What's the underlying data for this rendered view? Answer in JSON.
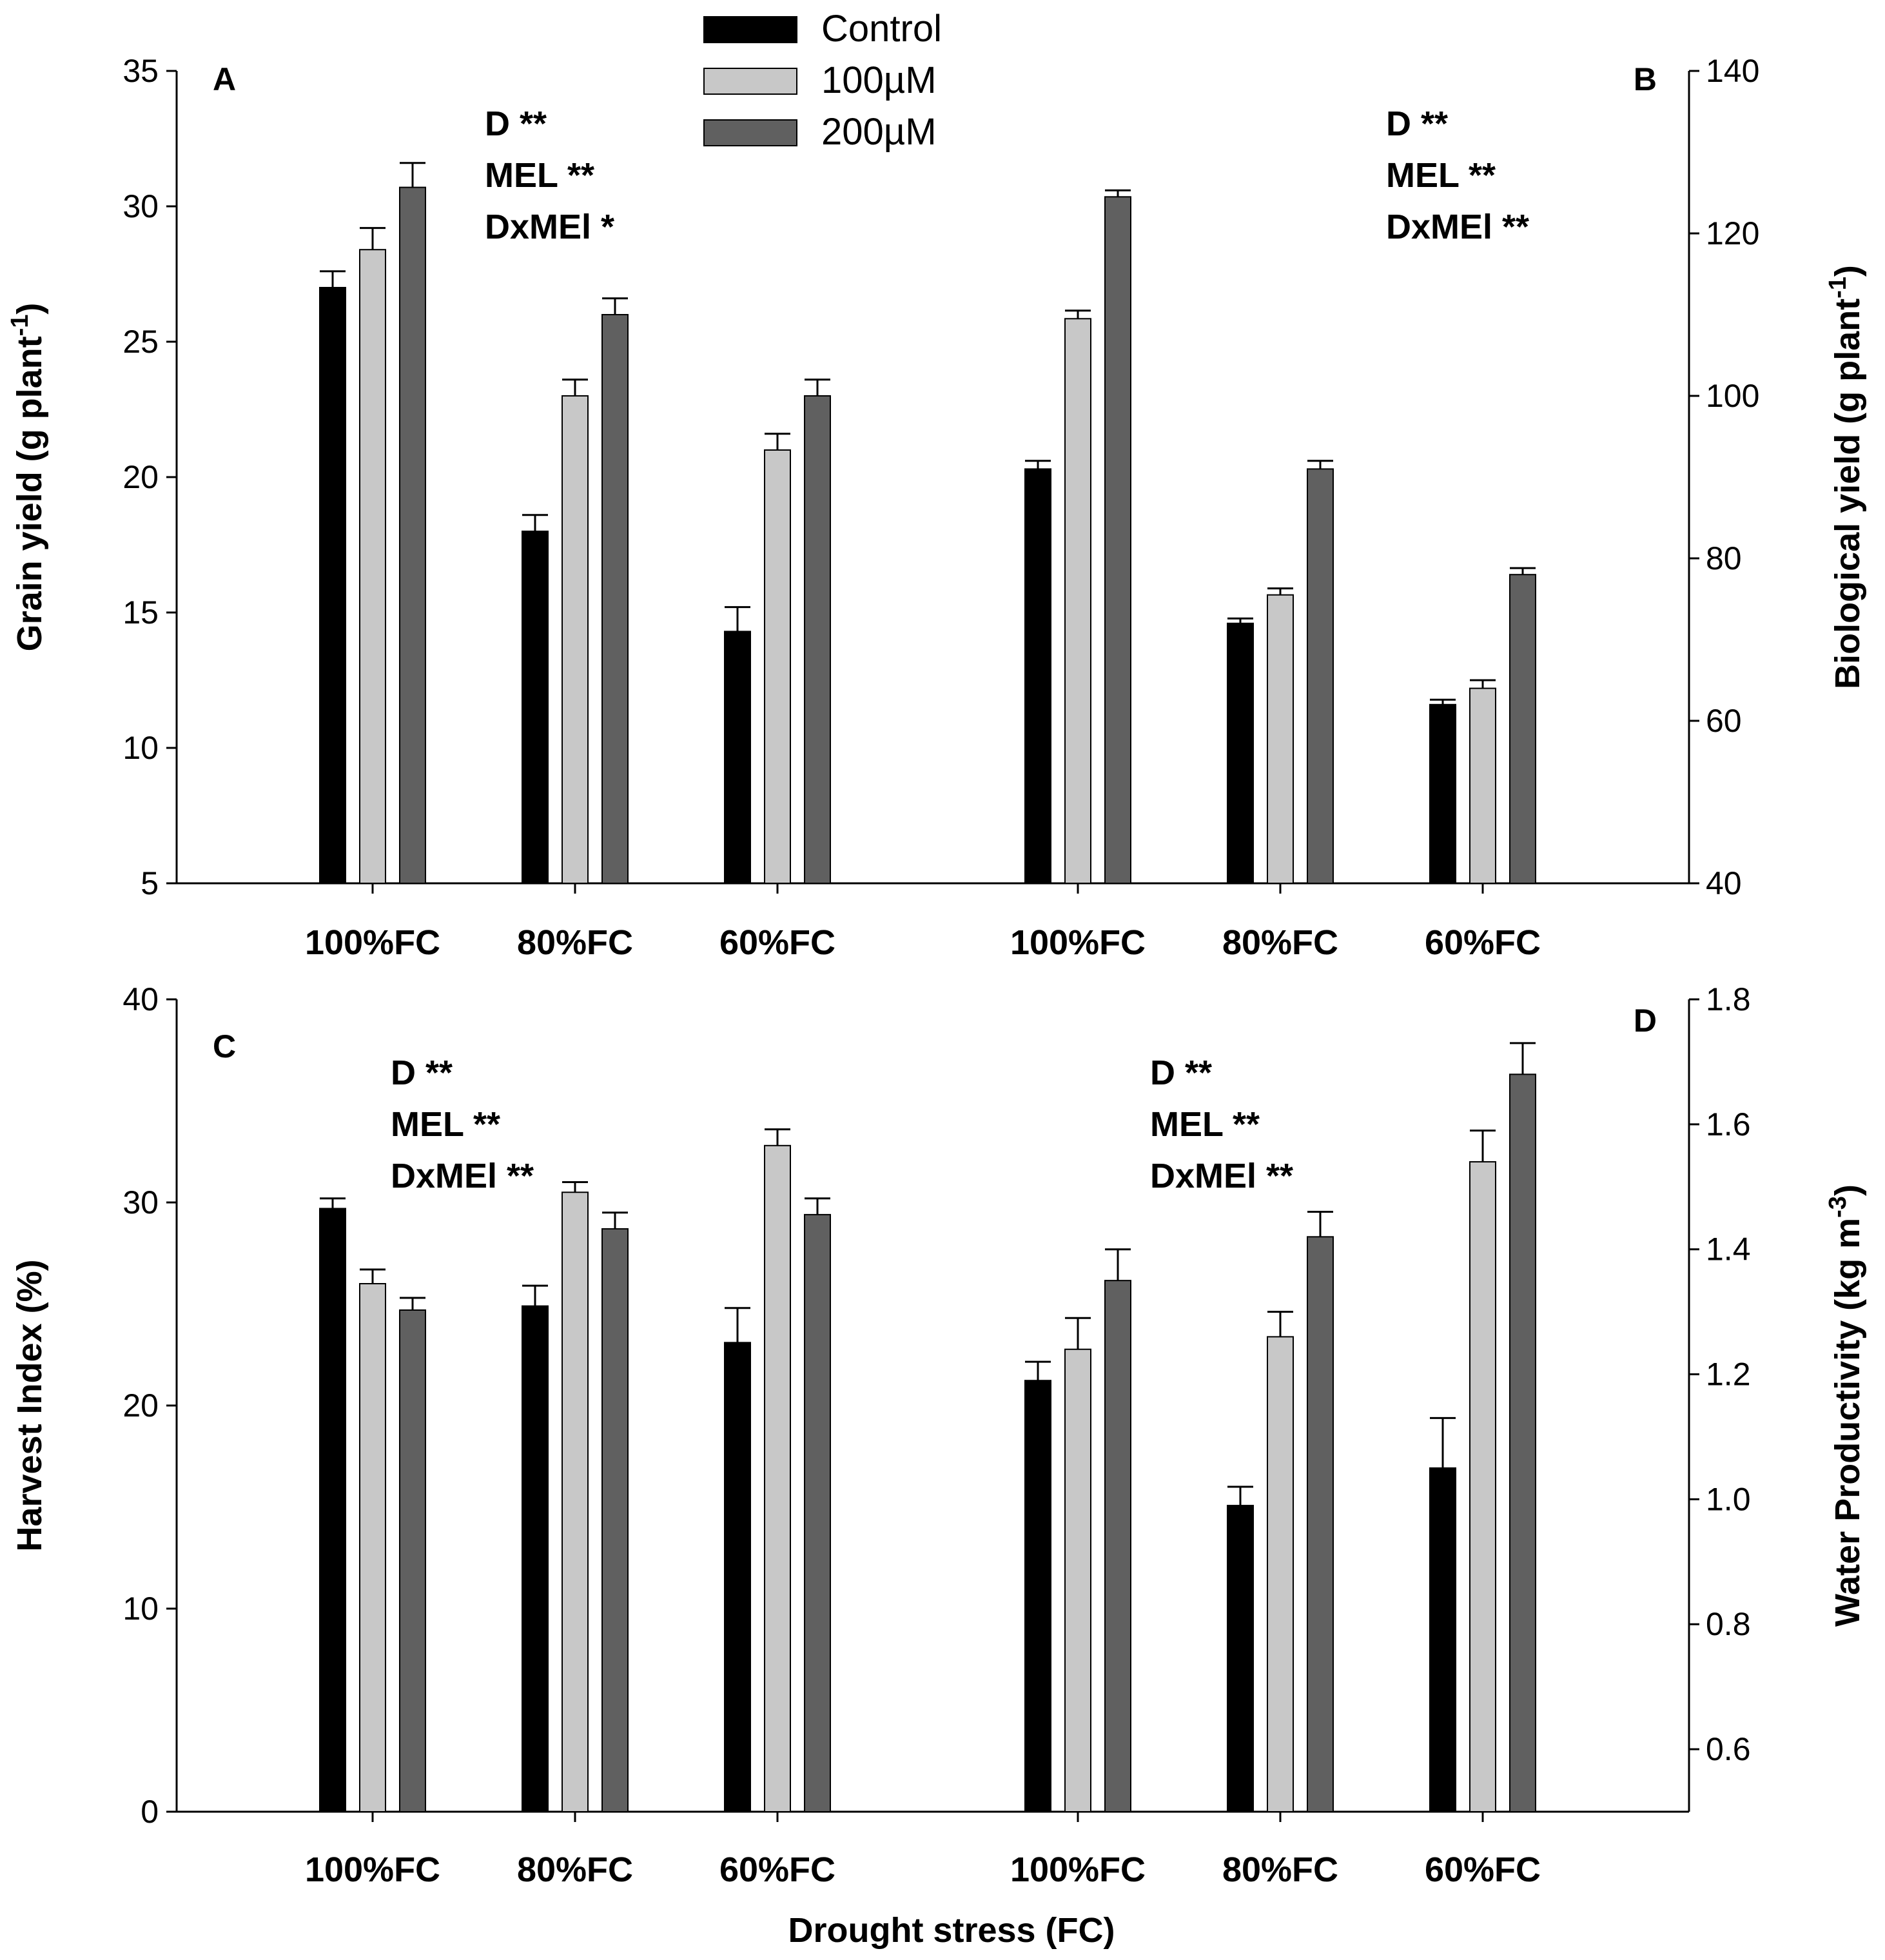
{
  "colors": {
    "control": "#000000",
    "100uM": "#c8c8c8",
    "200uM": "#606060"
  },
  "legend": [
    "Control",
    "100µM",
    "200µM"
  ],
  "xlabel": "Drought stress (FC)",
  "chart_data": [
    {
      "panel": "A",
      "type": "bar",
      "axis": "left",
      "ylabel_main": "Grain yield (g plant",
      "ylabel_sup": "-1",
      "ylabel_end": ")",
      "ylim": [
        5,
        35
      ],
      "yticks": [
        "5",
        "10",
        "15",
        "20",
        "25",
        "30",
        "35"
      ],
      "ytick_values": [
        5,
        10,
        15,
        20,
        25,
        30,
        35
      ],
      "categories": [
        "100%FC",
        "80%FC",
        "60%FC"
      ],
      "stats": [
        "D **",
        "MEL **",
        "DxMEl *"
      ],
      "series": [
        {
          "name": "Control",
          "values": [
            27.0,
            18.0,
            14.3
          ],
          "errors": [
            0.6,
            0.6,
            0.9
          ]
        },
        {
          "name": "100µM",
          "values": [
            28.4,
            23.0,
            21.0
          ],
          "errors": [
            0.8,
            0.6,
            0.6
          ]
        },
        {
          "name": "200µM",
          "values": [
            30.7,
            26.0,
            23.0
          ],
          "errors": [
            0.9,
            0.6,
            0.6
          ]
        }
      ]
    },
    {
      "panel": "B",
      "type": "bar",
      "axis": "right",
      "ylabel_main": "Biological yield (g plant",
      "ylabel_sup": "-1",
      "ylabel_end": ")",
      "ylim": [
        40,
        140
      ],
      "yticks": [
        "40",
        "60",
        "80",
        "100",
        "120",
        "140"
      ],
      "ytick_values": [
        40,
        60,
        80,
        100,
        120,
        140
      ],
      "categories": [
        "100%FC",
        "80%FC",
        "60%FC"
      ],
      "stats": [
        "D **",
        "MEL **",
        "DxMEl **"
      ],
      "series": [
        {
          "name": "Control",
          "values": [
            91.0,
            72.0,
            62.0
          ],
          "errors": [
            1.0,
            0.6,
            0.6
          ]
        },
        {
          "name": "100µM",
          "values": [
            109.5,
            75.5,
            64.0
          ],
          "errors": [
            1.0,
            0.8,
            1.0
          ]
        },
        {
          "name": "200µM",
          "values": [
            124.5,
            91.0,
            78.0
          ],
          "errors": [
            0.8,
            1.0,
            0.8
          ]
        }
      ]
    },
    {
      "panel": "C",
      "type": "bar",
      "axis": "left",
      "ylabel_main": "Harvest Index (%)",
      "ylabel_sup": "",
      "ylabel_end": "",
      "ylim": [
        0,
        40
      ],
      "yticks": [
        "0",
        "10",
        "20",
        "30",
        "40"
      ],
      "ytick_values": [
        0,
        10,
        20,
        30,
        40
      ],
      "categories": [
        "100%FC",
        "80%FC",
        "60%FC"
      ],
      "stats": [
        "D **",
        "MEL **",
        "DxMEl **"
      ],
      "series": [
        {
          "name": "Control",
          "values": [
            29.7,
            24.9,
            23.1
          ],
          "errors": [
            0.5,
            1.0,
            1.7
          ]
        },
        {
          "name": "100µM",
          "values": [
            26.0,
            30.5,
            32.8
          ],
          "errors": [
            0.7,
            0.5,
            0.8
          ]
        },
        {
          "name": "200µM",
          "values": [
            24.7,
            28.7,
            29.4
          ],
          "errors": [
            0.6,
            0.8,
            0.8
          ]
        }
      ]
    },
    {
      "panel": "D",
      "type": "bar",
      "axis": "right",
      "ylabel_main": "Water Productivity (kg m",
      "ylabel_sup": "-3",
      "ylabel_end": ")",
      "ylim": [
        0.5,
        1.8
      ],
      "yticks": [
        "0.6",
        "0.8",
        "1.0",
        "1.2",
        "1.4",
        "1.6",
        "1.8"
      ],
      "ytick_values": [
        0.6,
        0.8,
        1.0,
        1.2,
        1.4,
        1.6,
        1.8
      ],
      "categories": [
        "100%FC",
        "80%FC",
        "60%FC"
      ],
      "stats": [
        "D **",
        "MEL **",
        "DxMEl **"
      ],
      "series": [
        {
          "name": "Control",
          "values": [
            1.19,
            0.99,
            1.05
          ],
          "errors": [
            0.03,
            0.03,
            0.08
          ]
        },
        {
          "name": "100µM",
          "values": [
            1.24,
            1.26,
            1.54
          ],
          "errors": [
            0.05,
            0.04,
            0.05
          ]
        },
        {
          "name": "200µM",
          "values": [
            1.35,
            1.42,
            1.68
          ],
          "errors": [
            0.05,
            0.04,
            0.05
          ]
        }
      ]
    }
  ]
}
